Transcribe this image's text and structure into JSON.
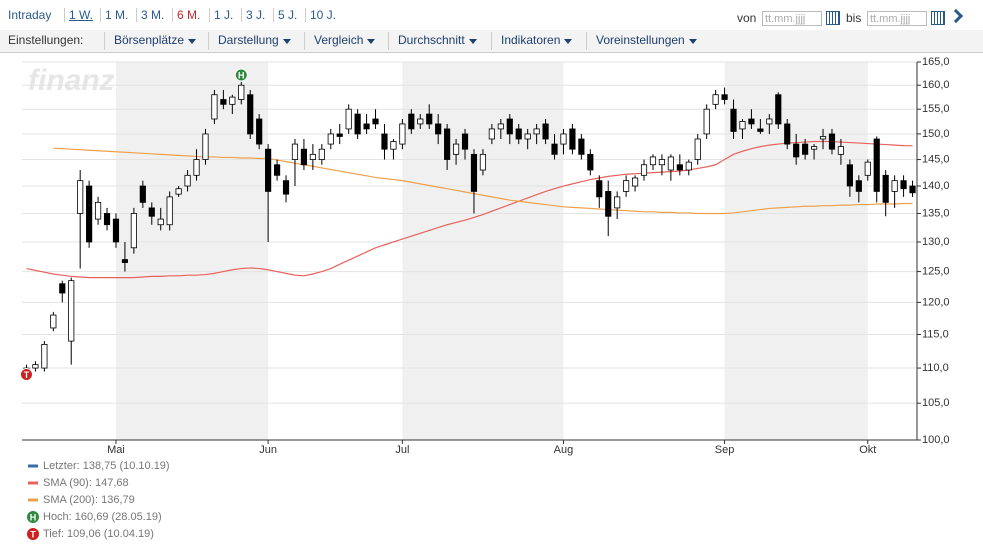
{
  "toolbar": {
    "periods": [
      {
        "label": "Intraday"
      },
      {
        "label": "1 W.",
        "underlined": true
      },
      {
        "label": "1 M."
      },
      {
        "label": "3 M."
      },
      {
        "label": "6 M.",
        "active": true
      },
      {
        "label": "1 J."
      },
      {
        "label": "3 J."
      },
      {
        "label": "5 J."
      },
      {
        "label": "10 J."
      }
    ],
    "date_from": {
      "label": "von",
      "placeholder": "tt.mm.jjjj"
    },
    "date_to": {
      "label": "bis",
      "placeholder": "tt.mm.jjjj"
    },
    "settings_label": "Einstellungen:",
    "menus": [
      "Börsenplätze",
      "Darstellung",
      "Vergleich",
      "Durchschnitt",
      "Indikatoren",
      "Voreinstellungen"
    ]
  },
  "watermark": "finanztreff.de",
  "chart_data": {
    "type": "candlestick",
    "log_scale": true,
    "grid": true,
    "shade_alternate_months": true,
    "categories": [
      null,
      null,
      null,
      null,
      null,
      null,
      null,
      null,
      null,
      null,
      "Mai",
      null,
      null,
      null,
      null,
      null,
      null,
      null,
      null,
      null,
      null,
      null,
      null,
      null,
      null,
      null,
      null,
      "Jun",
      null,
      null,
      null,
      null,
      null,
      null,
      null,
      null,
      null,
      null,
      null,
      null,
      null,
      null,
      "Jul",
      null,
      null,
      null,
      null,
      null,
      null,
      null,
      null,
      null,
      null,
      null,
      null,
      null,
      null,
      null,
      null,
      null,
      "Aug",
      null,
      null,
      null,
      null,
      null,
      null,
      null,
      null,
      null,
      null,
      null,
      null,
      null,
      null,
      null,
      null,
      null,
      "Sep",
      null,
      null,
      null,
      null,
      null,
      null,
      null,
      null,
      null,
      null,
      null,
      null,
      null,
      null,
      null,
      "Okt",
      null,
      null,
      null,
      null,
      null
    ],
    "candles": {
      "legend": "Letzter: 138,75 (10.10.19)",
      "color": "#3a6ea5",
      "open": [
        109.5,
        110,
        110,
        116,
        123,
        114,
        135,
        140,
        134,
        135,
        134,
        127,
        129,
        140,
        136,
        133,
        133,
        138.5,
        140,
        142,
        145,
        153,
        157,
        156,
        157,
        158,
        153,
        147,
        144,
        141,
        145,
        147,
        145,
        145,
        148,
        150,
        151,
        154,
        152,
        153,
        150,
        147,
        148,
        154,
        152,
        154,
        152,
        151,
        146,
        150,
        146,
        143,
        149,
        151,
        153,
        151,
        149,
        150,
        152,
        148,
        148,
        151,
        149,
        146,
        141,
        139,
        136,
        139,
        140,
        142,
        144,
        144,
        143,
        144,
        143,
        145,
        150,
        156,
        158,
        155,
        151,
        153,
        151,
        152,
        158,
        152,
        148,
        148,
        147,
        149,
        150,
        146,
        144,
        141,
        142,
        149,
        142,
        139,
        141,
        140
      ],
      "high": [
        110.5,
        111,
        114,
        118.5,
        123.5,
        124,
        143,
        141,
        138,
        136,
        135,
        130,
        136,
        141,
        137,
        136,
        139,
        140,
        143,
        147,
        151,
        159,
        159,
        158,
        160.69,
        159,
        154,
        148,
        145,
        142,
        149,
        149,
        148,
        148,
        151,
        152,
        156,
        155,
        154,
        155,
        152,
        149,
        153,
        155,
        154,
        156,
        154,
        152,
        149,
        151,
        147,
        147,
        152,
        153,
        154,
        152,
        151,
        152,
        153,
        150,
        151,
        152,
        150,
        147,
        142,
        141,
        139,
        142,
        142,
        145,
        146,
        146,
        146,
        146,
        145,
        150,
        156,
        159,
        159.5,
        157,
        153,
        155,
        153,
        154,
        158.5,
        153,
        150,
        149,
        148,
        151,
        151,
        149,
        145,
        142,
        145,
        149.5,
        143,
        142,
        142,
        141
      ],
      "low": [
        109.06,
        109.5,
        109.5,
        115.5,
        120,
        110.5,
        125.5,
        129,
        133,
        132,
        129,
        125,
        128,
        136,
        133,
        132,
        132,
        138,
        139,
        141,
        144,
        152,
        155,
        154,
        156,
        149,
        147,
        130,
        141,
        137,
        140,
        143,
        143,
        144,
        147,
        148,
        150,
        149,
        150,
        151,
        145,
        145,
        147,
        150,
        151,
        151,
        148,
        143,
        144,
        145,
        135,
        142,
        148,
        149,
        148,
        148,
        147,
        148,
        148,
        145,
        146,
        146,
        145,
        142,
        136,
        131,
        134,
        138,
        139,
        141,
        143,
        142,
        141,
        142,
        142,
        144,
        149,
        155,
        156,
        149,
        149,
        151,
        150,
        150,
        151,
        147,
        144,
        145,
        145,
        147,
        146,
        144,
        138,
        137,
        141,
        137,
        134.5,
        136,
        138,
        138
      ],
      "close": [
        110,
        110.5,
        113.5,
        118,
        121.5,
        123.5,
        141,
        130,
        137,
        133,
        130,
        126.5,
        135,
        137,
        134.5,
        134,
        138,
        139.5,
        142,
        145,
        150,
        158,
        156,
        157.5,
        160,
        150,
        148,
        139,
        142,
        138.5,
        148,
        144,
        146,
        147,
        150,
        149.5,
        155,
        150,
        151,
        152,
        147,
        148.5,
        152,
        151,
        153,
        152,
        150,
        145,
        148,
        147,
        139,
        146,
        151,
        152,
        150,
        149,
        150,
        151,
        149,
        146,
        150,
        147,
        146,
        143,
        138,
        134.5,
        138,
        141,
        141.5,
        144,
        145.5,
        145,
        145.5,
        143,
        144.5,
        149,
        155,
        158,
        157,
        150.5,
        152.5,
        152,
        150.5,
        153,
        152,
        148,
        145.5,
        146,
        147.5,
        149.5,
        147,
        147.5,
        140,
        139,
        144.5,
        139,
        137,
        141,
        139.5,
        138.75
      ]
    },
    "series": [
      {
        "legend": "SMA (90): 147,68",
        "color": "#e8625c",
        "values": [
          125.5,
          125.2,
          124.9,
          124.6,
          124.4,
          124.2,
          124.1,
          124,
          124,
          124,
          124,
          124,
          124,
          124.1,
          124.2,
          124.2,
          124.3,
          124.3,
          124.4,
          124.4,
          124.5,
          124.7,
          125,
          125.3,
          125.5,
          125.6,
          125.5,
          125.3,
          125,
          124.7,
          124.4,
          124.3,
          124.6,
          125,
          125.5,
          126.2,
          126.9,
          127.6,
          128.3,
          129,
          129.5,
          130,
          130.5,
          131,
          131.5,
          132,
          132.5,
          133,
          133.4,
          133.8,
          134.3,
          134.8,
          135.4,
          136,
          136.6,
          137.2,
          137.8,
          138.4,
          139,
          139.5,
          140,
          140.4,
          140.8,
          141.2,
          141.5,
          141.8,
          142,
          142.2,
          142.3,
          142.4,
          142.5,
          142.6,
          142.7,
          142.8,
          143,
          143.3,
          143.6,
          144,
          145,
          146,
          146.6,
          147.1,
          147.5,
          147.8,
          148,
          148.2,
          148.3,
          148.4,
          148.5,
          148.5,
          148.5,
          148.4,
          148.3,
          148.2,
          148.1,
          148,
          147.9,
          147.8,
          147.7,
          147.68
        ]
      },
      {
        "legend": "SMA (200): 136,79",
        "color": "#f0a04b",
        "values": [
          null,
          null,
          null,
          147.2,
          147.1,
          147,
          146.9,
          146.8,
          146.7,
          146.6,
          146.5,
          146.4,
          146.3,
          146.2,
          146.1,
          146,
          145.9,
          145.8,
          145.7,
          145.6,
          145.5,
          145.5,
          145.4,
          145.4,
          145.3,
          145.3,
          145.2,
          145.2,
          144.9,
          144.6,
          144.3,
          144,
          143.7,
          143.4,
          143.1,
          142.8,
          142.5,
          142.2,
          141.9,
          141.6,
          141.4,
          141.2,
          141,
          140.7,
          140.4,
          140.1,
          139.8,
          139.5,
          139.2,
          138.9,
          138.6,
          138.3,
          138,
          137.7,
          137.4,
          137.2,
          137,
          136.8,
          136.6,
          136.4,
          136.2,
          136.1,
          136,
          135.9,
          135.8,
          135.7,
          135.6,
          135.5,
          135.4,
          135.3,
          135.3,
          135.2,
          135.2,
          135.1,
          135.1,
          135,
          135,
          135,
          135,
          135.1,
          135.3,
          135.5,
          135.7,
          135.9,
          136,
          136.1,
          136.2,
          136.3,
          136.3,
          136.4,
          136.4,
          136.5,
          136.5,
          136.6,
          136.6,
          136.7,
          136.7,
          136.7,
          136.8,
          136.79
        ]
      }
    ],
    "high_marker": {
      "label": "H",
      "legend": "Hoch: 160,69 (28.05.19)",
      "color": "#2e8b3e"
    },
    "low_marker": {
      "label": "T",
      "legend": "Tief: 109,06 (10.04.19)",
      "color": "#cc1f1f"
    },
    "ylim": [
      100,
      165
    ],
    "yticks": [
      {
        "value": 100,
        "label": "100,0"
      },
      {
        "value": 105,
        "label": "105,0"
      },
      {
        "value": 110,
        "label": "110,0"
      },
      {
        "value": 115,
        "label": "115,0"
      },
      {
        "value": 120,
        "label": "120,0"
      },
      {
        "value": 125,
        "label": "125,0"
      },
      {
        "value": 130,
        "label": "130,0"
      },
      {
        "value": 135,
        "label": "135,0"
      },
      {
        "value": 140,
        "label": "140,0"
      },
      {
        "value": 145,
        "label": "145,0"
      },
      {
        "value": 150,
        "label": "150,0"
      },
      {
        "value": 155,
        "label": "155,0"
      },
      {
        "value": 160,
        "label": "160,0"
      },
      {
        "value": 165,
        "label": "165,0"
      }
    ]
  }
}
